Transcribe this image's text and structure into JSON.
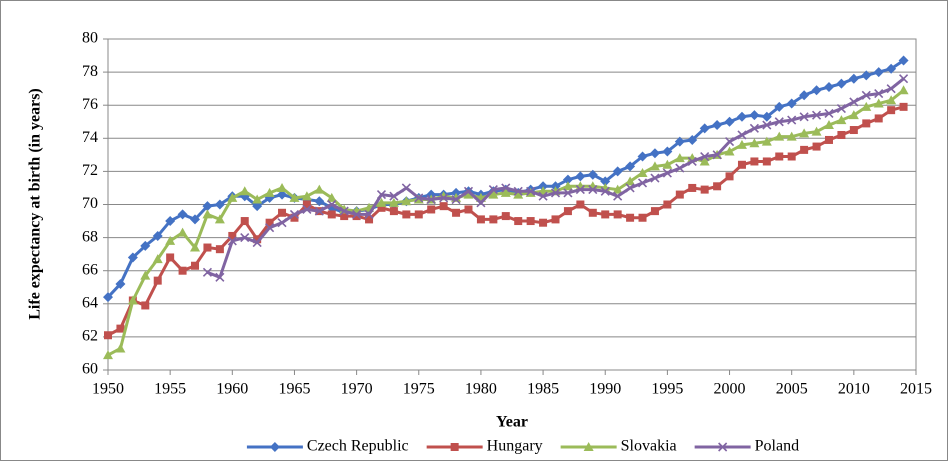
{
  "chart_data": {
    "type": "line",
    "xlabel": "Year",
    "ylabel": "Life expectancy  at birth (in years)",
    "x": [
      1950,
      1951,
      1952,
      1953,
      1954,
      1955,
      1956,
      1957,
      1958,
      1959,
      1960,
      1961,
      1962,
      1963,
      1964,
      1965,
      1966,
      1967,
      1968,
      1969,
      1970,
      1971,
      1972,
      1973,
      1974,
      1975,
      1976,
      1977,
      1978,
      1979,
      1980,
      1981,
      1982,
      1983,
      1984,
      1985,
      1986,
      1987,
      1988,
      1989,
      1990,
      1991,
      1992,
      1993,
      1994,
      1995,
      1996,
      1997,
      1998,
      1999,
      2000,
      2001,
      2002,
      2003,
      2004,
      2005,
      2006,
      2007,
      2008,
      2009,
      2010,
      2011,
      2012,
      2013,
      2014
    ],
    "xlim": [
      1950,
      2015
    ],
    "xticks": [
      1950,
      1955,
      1960,
      1965,
      1970,
      1975,
      1980,
      1985,
      1990,
      1995,
      2000,
      2005,
      2010,
      2015
    ],
    "ylim": [
      60,
      80
    ],
    "yticks": [
      60,
      62,
      64,
      66,
      68,
      70,
      72,
      74,
      76,
      78,
      80
    ],
    "grid": true,
    "legend": "bottom",
    "series": [
      {
        "name": "Czech Republic",
        "color": "#4472c4",
        "marker": "diamond",
        "values": [
          64.4,
          65.2,
          66.8,
          67.5,
          68.1,
          69.0,
          69.4,
          69.1,
          69.9,
          70.0,
          70.5,
          70.5,
          69.9,
          70.4,
          70.6,
          70.4,
          70.3,
          70.2,
          69.8,
          69.5,
          69.6,
          69.7,
          70.0,
          70.0,
          70.2,
          70.4,
          70.6,
          70.6,
          70.7,
          70.8,
          70.6,
          70.8,
          70.9,
          70.7,
          70.9,
          71.1,
          71.1,
          71.5,
          71.7,
          71.8,
          71.4,
          72.0,
          72.3,
          72.9,
          73.1,
          73.2,
          73.8,
          73.9,
          74.6,
          74.8,
          75.0,
          75.3,
          75.4,
          75.3,
          75.9,
          76.1,
          76.6,
          76.9,
          77.1,
          77.3,
          77.6,
          77.8,
          78.0,
          78.2,
          78.7
        ]
      },
      {
        "name": "Hungary",
        "color": "#c0504d",
        "marker": "square",
        "values": [
          62.1,
          62.5,
          64.2,
          63.9,
          65.4,
          66.8,
          66.0,
          66.3,
          67.4,
          67.3,
          68.1,
          69.0,
          67.9,
          68.9,
          69.5,
          69.2,
          70.0,
          69.6,
          69.4,
          69.3,
          69.3,
          69.1,
          69.8,
          69.6,
          69.4,
          69.4,
          69.7,
          69.9,
          69.5,
          69.7,
          69.1,
          69.1,
          69.3,
          69.0,
          69.0,
          68.9,
          69.1,
          69.6,
          70.0,
          69.5,
          69.4,
          69.4,
          69.2,
          69.2,
          69.6,
          70.0,
          70.6,
          71.0,
          70.9,
          71.1,
          71.7,
          72.4,
          72.6,
          72.6,
          72.9,
          72.9,
          73.3,
          73.5,
          73.9,
          74.2,
          74.5,
          74.9,
          75.2,
          75.7,
          75.9
        ]
      },
      {
        "name": "Slovakia",
        "color": "#9bbb59",
        "marker": "triangle",
        "values": [
          60.9,
          61.3,
          64.2,
          65.7,
          66.7,
          67.8,
          68.3,
          67.4,
          69.4,
          69.1,
          70.4,
          70.8,
          70.3,
          70.7,
          71.0,
          70.4,
          70.5,
          70.9,
          70.4,
          69.7,
          69.6,
          69.8,
          70.1,
          70.1,
          70.2,
          70.3,
          70.3,
          70.5,
          70.4,
          70.6,
          70.4,
          70.6,
          70.7,
          70.6,
          70.7,
          70.8,
          70.8,
          71.1,
          71.1,
          71.1,
          71.0,
          70.9,
          71.4,
          71.9,
          72.3,
          72.4,
          72.8,
          72.8,
          72.6,
          73.0,
          73.2,
          73.6,
          73.7,
          73.8,
          74.1,
          74.1,
          74.3,
          74.4,
          74.8,
          75.1,
          75.4,
          75.9,
          76.1,
          76.3,
          76.9
        ]
      },
      {
        "name": "Poland",
        "color": "#8064a2",
        "marker": "x",
        "values": [
          null,
          null,
          null,
          null,
          null,
          null,
          null,
          null,
          65.9,
          65.6,
          67.8,
          68.0,
          67.7,
          68.6,
          68.9,
          69.4,
          69.7,
          69.6,
          70.0,
          69.6,
          69.4,
          69.4,
          70.6,
          70.5,
          71.0,
          70.4,
          70.3,
          70.4,
          70.3,
          70.8,
          70.1,
          70.9,
          71.0,
          70.8,
          70.8,
          70.5,
          70.7,
          70.7,
          70.9,
          70.9,
          70.8,
          70.5,
          71.0,
          71.3,
          71.6,
          71.9,
          72.2,
          72.6,
          72.9,
          73.0,
          73.8,
          74.2,
          74.6,
          74.8,
          75.0,
          75.1,
          75.3,
          75.4,
          75.5,
          75.8,
          76.2,
          76.6,
          76.7,
          77.0,
          77.6
        ]
      }
    ]
  }
}
